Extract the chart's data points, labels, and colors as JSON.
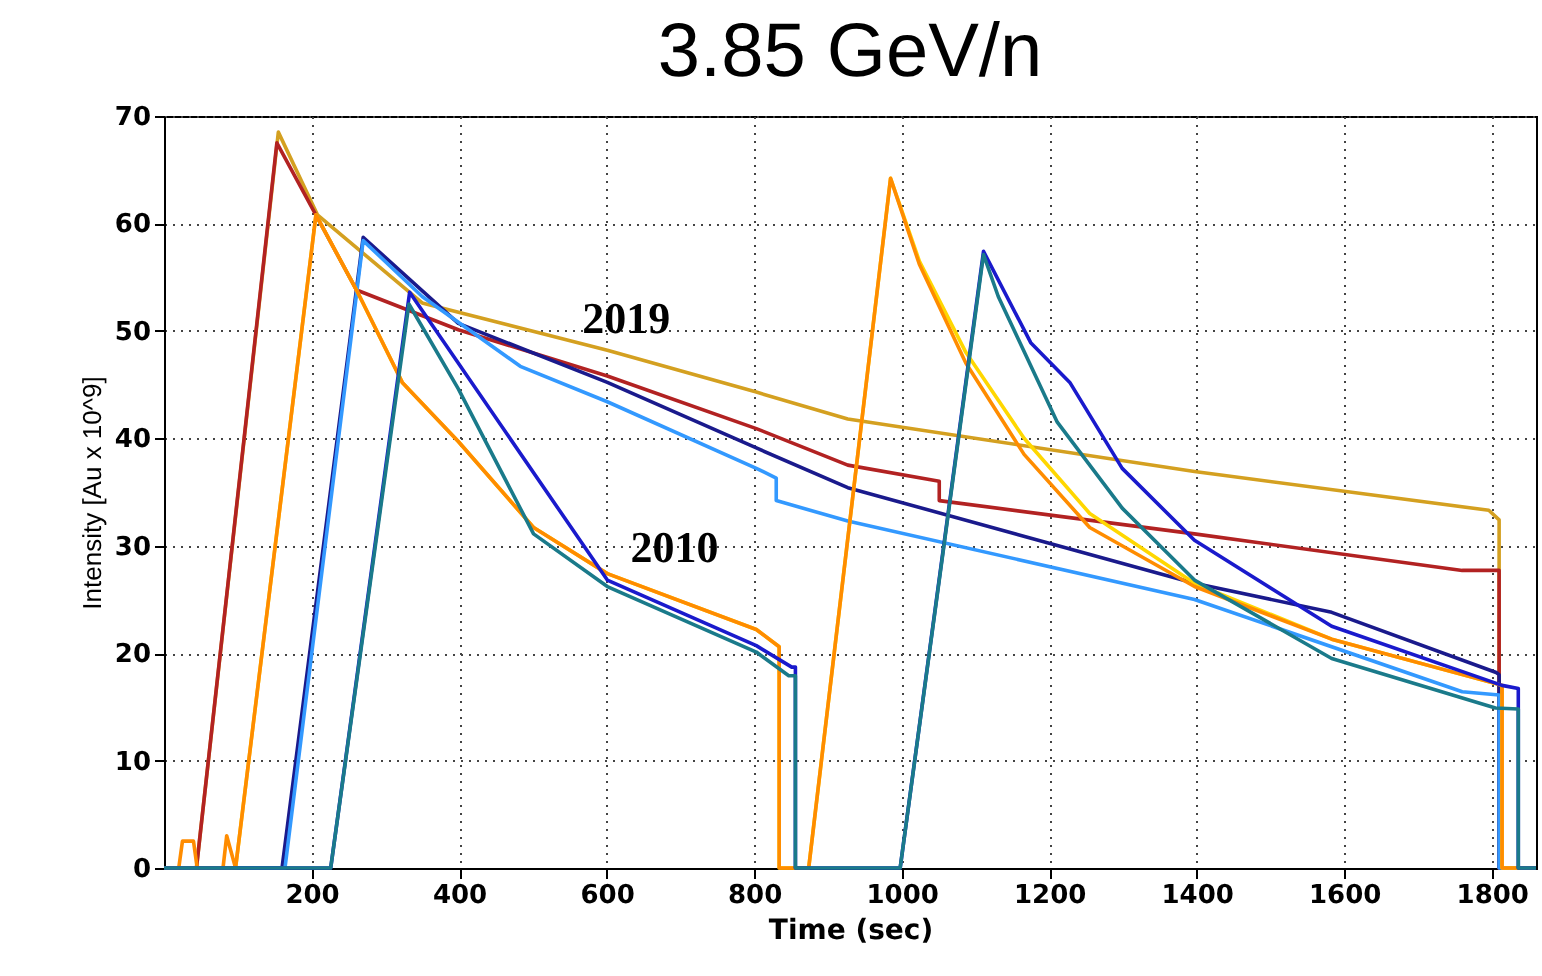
{
  "chart_data": {
    "type": "line",
    "title": "3.85 GeV/n",
    "xlabel": "Time  (sec)",
    "ylabel": "Intensity [Au x 10^9]",
    "xlim": [
      0,
      1860
    ],
    "xticks": [
      200,
      400,
      600,
      800,
      1000,
      1200,
      1400,
      1600,
      1800
    ],
    "ylim": [
      0,
      70
    ],
    "yticks": [
      0,
      10,
      20,
      30,
      40,
      50,
      60,
      70
    ],
    "grid": true,
    "marker": "none",
    "line_style": "solid",
    "annotations": [
      "2019",
      "2010"
    ],
    "series": [
      {
        "color": "#d4a020",
        "x": [
          0,
          44,
          155,
          208,
          350,
          601,
          803,
          927,
          1397,
          1796,
          1810,
          1810,
          1860
        ],
        "values": [
          0,
          0,
          68.5,
          60.8,
          52.6,
          48.2,
          44.3,
          41.8,
          36.9,
          33.3,
          32.4,
          0,
          0
        ]
      },
      {
        "color": "#b22222",
        "x": [
          0,
          44,
          153,
          261,
          399,
          601,
          803,
          927,
          1051,
          1051,
          1397,
          1760,
          1810,
          1810,
          1860
        ],
        "values": [
          0,
          0,
          67.5,
          53.8,
          50.1,
          45.8,
          40.9,
          37.5,
          36.0,
          34.2,
          31.1,
          27.7,
          27.7,
          0,
          0
        ]
      },
      {
        "color": "#1a1a8c",
        "x": [
          0,
          160,
          270,
          399,
          601,
          803,
          927,
          1397,
          1583,
          1806,
          1810,
          1810,
          1860
        ],
        "values": [
          0,
          0,
          58.7,
          50.7,
          45.2,
          39.1,
          35.4,
          26.5,
          23.8,
          18.2,
          18.0,
          0,
          0
        ]
      },
      {
        "color": "#3399ff",
        "x": [
          0,
          164,
          270,
          350,
          483,
          601,
          803,
          830,
          830,
          927,
          1397,
          1760,
          1810,
          1810,
          1860
        ],
        "values": [
          0,
          0,
          58.4,
          53.2,
          46.7,
          43.4,
          37.2,
          36.3,
          34.2,
          32.3,
          25.0,
          16.4,
          16.1,
          0,
          0
        ]
      },
      {
        "color": "#ffd700",
        "x": [
          0,
          97,
          206,
          261,
          323,
          399,
          501,
          601,
          803,
          834,
          834,
          874,
          985,
          1024,
          1087,
          1166,
          1255,
          1397,
          1583,
          1814,
          1814,
          1860
        ],
        "values": [
          0,
          0,
          60.8,
          53.8,
          45.2,
          39.7,
          31.7,
          27.4,
          22.2,
          20.6,
          0,
          0,
          64.2,
          56.5,
          48.0,
          40.0,
          33.0,
          26.5,
          21.3,
          17.0,
          0,
          0
        ]
      },
      {
        "color": "#ff8c00",
        "x": [
          0,
          20,
          25,
          40,
          45,
          80,
          85,
          97,
          206,
          261,
          323,
          399,
          501,
          601,
          803,
          834,
          834,
          874,
          985,
          1024,
          1087,
          1166,
          1255,
          1397,
          1583,
          1814,
          1814,
          1860
        ],
        "values": [
          0,
          0,
          2.5,
          2.5,
          0,
          0,
          3,
          0,
          60.8,
          53.8,
          45.2,
          39.7,
          31.7,
          27.4,
          22.2,
          20.6,
          0,
          0,
          64.2,
          56.2,
          47.0,
          38.5,
          31.7,
          26.2,
          21.3,
          17.0,
          0,
          0
        ]
      },
      {
        "color": "#1a1acc",
        "x": [
          0,
          226,
          333,
          601,
          803,
          851,
          856,
          856,
          998,
          1111,
          1175,
          1228,
          1299,
          1397,
          1583,
          1814,
          1836,
          1836,
          1860
        ],
        "values": [
          0,
          0,
          53.6,
          26.8,
          20.7,
          18.7,
          18.7,
          0,
          0,
          57.4,
          48.9,
          45.2,
          37.2,
          30.5,
          22.5,
          17.0,
          16.7,
          0,
          0
        ]
      },
      {
        "color": "#1a7a8a",
        "x": [
          0,
          226,
          332,
          399,
          501,
          601,
          803,
          847,
          856,
          856,
          998,
          1111,
          1131,
          1211,
          1299,
          1397,
          1583,
          1805,
          1836,
          1836,
          1860
        ],
        "values": [
          0,
          0,
          52.5,
          44.6,
          31.1,
          26.2,
          20.1,
          17.9,
          17.9,
          0,
          0,
          57.1,
          53.2,
          41.5,
          33.5,
          26.8,
          19.5,
          14.9,
          14.8,
          0,
          0
        ]
      }
    ]
  }
}
